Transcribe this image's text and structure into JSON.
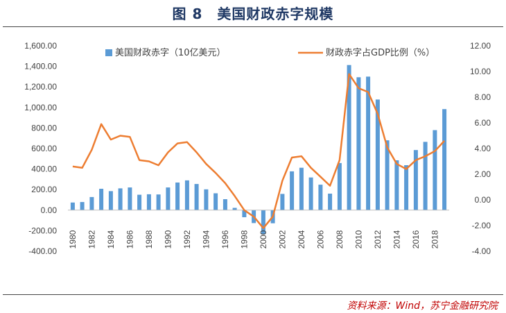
{
  "header": {
    "title": "图 8　美国财政赤字规模"
  },
  "footer": {
    "source": "资料来源：Wind，苏宁金融研究院"
  },
  "chart_data": {
    "type": "bar",
    "x": [
      1980,
      1981,
      1982,
      1983,
      1984,
      1985,
      1986,
      1987,
      1988,
      1989,
      1990,
      1991,
      1992,
      1993,
      1994,
      1995,
      1996,
      1997,
      1998,
      1999,
      2000,
      2001,
      2002,
      2003,
      2004,
      2005,
      2006,
      2007,
      2008,
      2009,
      2010,
      2011,
      2012,
      2013,
      2014,
      2015,
      2016,
      2017,
      2018,
      2019
    ],
    "x_tick_labels": [
      "1980",
      "1982",
      "1984",
      "1986",
      "1988",
      "1990",
      "1992",
      "1994",
      "1996",
      "1998",
      "2000",
      "2002",
      "2004",
      "2006",
      "2008",
      "2010",
      "2012",
      "2014",
      "2016",
      "2018"
    ],
    "series": [
      {
        "name": "美国财政赤字（10亿美元）",
        "kind": "bar",
        "axis": "left",
        "color": "#5b9bd5",
        "values": [
          74,
          79,
          128,
          208,
          185,
          212,
          221,
          150,
          155,
          153,
          221,
          269,
          290,
          255,
          203,
          164,
          107,
          22,
          -69,
          -126,
          -236,
          -128,
          158,
          378,
          413,
          318,
          248,
          161,
          459,
          1413,
          1294,
          1300,
          1077,
          680,
          485,
          438,
          585,
          665,
          779,
          984
        ]
      },
      {
        "name": "财政赤字占GDP比例（%）",
        "kind": "line",
        "axis": "right",
        "color": "#ed7d31",
        "values": [
          2.6,
          2.5,
          3.9,
          5.9,
          4.7,
          5.0,
          4.9,
          3.1,
          3.0,
          2.7,
          3.7,
          4.4,
          4.5,
          3.7,
          2.8,
          2.1,
          1.3,
          0.3,
          -0.8,
          -1.3,
          -2.2,
          -1.3,
          1.5,
          3.3,
          3.4,
          2.5,
          1.8,
          1.1,
          3.1,
          9.8,
          8.7,
          8.4,
          6.7,
          4.1,
          2.8,
          2.4,
          3.1,
          3.4,
          3.8,
          4.6
        ]
      }
    ],
    "y_left": {
      "ylim": [
        -400,
        1600
      ],
      "ticks": [
        "-400.00",
        "-200.00",
        "0.00",
        "200.00",
        "400.00",
        "600.00",
        "800.00",
        "1,000.00",
        "1,200.00",
        "1,400.00",
        "1,600.00"
      ]
    },
    "y_right": {
      "ylim": [
        -4,
        12
      ],
      "ticks": [
        "-4.00",
        "-2.00",
        "0.00",
        "2.00",
        "4.00",
        "6.00",
        "8.00",
        "10.00",
        "12.00"
      ]
    },
    "legend": "top",
    "grid": false
  }
}
